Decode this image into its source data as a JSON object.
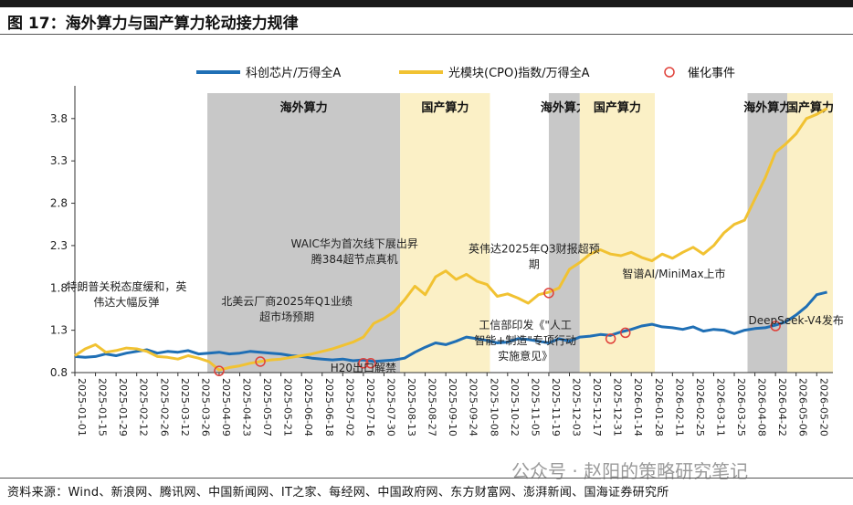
{
  "title": "图 17：海外算力与国产算力轮动接力规律",
  "source": "资料来源：Wind、新浪网、腾讯网、中国新闻网、IT之家、每经网、中国政府网、东方财富网、澎湃新闻、国海证券研究所",
  "watermark": "公众号 · 赵阳的策略研究笔记",
  "colors": {
    "blue": "#1f6fb5",
    "gold": "#f1c232",
    "gray_band": "#c8c8c8",
    "yellow_band": "#fbf0c6",
    "event": "#e0413a"
  },
  "chart_data": {
    "type": "line",
    "ylim": [
      0.8,
      4.1
    ],
    "yticks": [
      "0.8",
      "1.3",
      "1.8",
      "2.3",
      "2.8",
      "3.3",
      "3.8"
    ],
    "x_range": [
      "2025-01-01",
      "2026-05-31"
    ],
    "xticks": [
      "2025-01-01",
      "2025-01-15",
      "2025-01-29",
      "2025-02-12",
      "2025-02-26",
      "2025-03-12",
      "2025-03-26",
      "2025-04-09",
      "2025-04-23",
      "2025-05-07",
      "2025-05-21",
      "2025-06-04",
      "2025-06-18",
      "2025-07-02",
      "2025-07-16",
      "2025-07-30",
      "2025-08-13",
      "2025-08-27",
      "2025-09-10",
      "2025-09-24",
      "2025-10-08",
      "2025-10-22",
      "2025-11-05",
      "2025-11-19",
      "2025-12-03",
      "2025-12-17",
      "2025-12-31",
      "2026-01-14",
      "2026-01-28",
      "2026-02-11",
      "2026-02-25",
      "2026-03-11",
      "2026-03-25",
      "2026-04-08",
      "2026-04-22",
      "2026-05-06",
      "2026-05-20"
    ],
    "legend": [
      {
        "label": "科创芯片/万得全A",
        "kind": "line",
        "color": "#1f6fb5"
      },
      {
        "label": "光模块(CPO)指数/万得全A",
        "kind": "line",
        "color": "#f1c232"
      },
      {
        "label": "催化事件",
        "kind": "circle",
        "color": "#e0413a"
      }
    ],
    "bands": [
      {
        "label": "海外算力",
        "start": "2025-04-01",
        "end": "2025-08-10",
        "color": "gray"
      },
      {
        "label": "国产算力",
        "start": "2025-08-10",
        "end": "2025-10-10",
        "color": "yellow"
      },
      {
        "label": "海外算力",
        "start": "2025-11-19",
        "end": "2025-12-10",
        "color": "gray"
      },
      {
        "label": "国产算力",
        "start": "2025-12-10",
        "end": "2026-01-30",
        "color": "yellow"
      },
      {
        "label": "海外算力",
        "start": "2026-04-03",
        "end": "2026-04-30",
        "color": "gray"
      },
      {
        "label": "国产算力",
        "start": "2026-04-30",
        "end": "2026-05-31",
        "color": "yellow"
      }
    ],
    "series": [
      {
        "name": "科创芯片/万得全A",
        "x": [
          "2025-01-01",
          "2025-01-08",
          "2025-01-15",
          "2025-01-22",
          "2025-01-29",
          "2025-02-05",
          "2025-02-12",
          "2025-02-19",
          "2025-02-26",
          "2025-03-05",
          "2025-03-12",
          "2025-03-19",
          "2025-03-26",
          "2025-04-02",
          "2025-04-09",
          "2025-04-16",
          "2025-04-23",
          "2025-04-30",
          "2025-05-07",
          "2025-05-14",
          "2025-05-21",
          "2025-05-28",
          "2025-06-04",
          "2025-06-11",
          "2025-06-18",
          "2025-06-25",
          "2025-07-02",
          "2025-07-09",
          "2025-07-16",
          "2025-07-23",
          "2025-07-30",
          "2025-08-06",
          "2025-08-13",
          "2025-08-20",
          "2025-08-27",
          "2025-09-03",
          "2025-09-10",
          "2025-09-17",
          "2025-09-24",
          "2025-10-01",
          "2025-10-08",
          "2025-10-15",
          "2025-10-22",
          "2025-10-29",
          "2025-11-05",
          "2025-11-12",
          "2025-11-19",
          "2025-11-26",
          "2025-12-03",
          "2025-12-10",
          "2025-12-17",
          "2025-12-24",
          "2025-12-31",
          "2026-01-07",
          "2026-01-14",
          "2026-01-21",
          "2026-01-28",
          "2026-02-04",
          "2026-02-11",
          "2026-02-18",
          "2026-02-25",
          "2026-03-04",
          "2026-03-11",
          "2026-03-18",
          "2026-03-25",
          "2026-04-01",
          "2026-04-08",
          "2026-04-15",
          "2026-04-22",
          "2026-04-29",
          "2026-05-06",
          "2026-05-13",
          "2026-05-20",
          "2026-05-27"
        ],
        "values": [
          0.99,
          0.98,
          0.99,
          1.02,
          1.0,
          1.03,
          1.05,
          1.07,
          1.03,
          1.05,
          1.04,
          1.06,
          1.02,
          1.03,
          1.04,
          1.02,
          1.03,
          1.05,
          1.04,
          1.03,
          1.02,
          1.0,
          0.99,
          0.97,
          0.96,
          0.95,
          0.96,
          0.94,
          0.95,
          0.93,
          0.94,
          0.95,
          0.97,
          1.04,
          1.1,
          1.15,
          1.13,
          1.17,
          1.22,
          1.2,
          1.18,
          1.15,
          1.16,
          1.2,
          1.19,
          1.17,
          1.15,
          1.2,
          1.17,
          1.22,
          1.23,
          1.25,
          1.24,
          1.28,
          1.31,
          1.35,
          1.37,
          1.34,
          1.33,
          1.31,
          1.34,
          1.29,
          1.31,
          1.3,
          1.26,
          1.3,
          1.32,
          1.33,
          1.36,
          1.4,
          1.48,
          1.58,
          1.72,
          1.75
        ]
      },
      {
        "name": "光模块(CPO)指数/万得全A",
        "x": [
          "2025-01-01",
          "2025-01-08",
          "2025-01-15",
          "2025-01-22",
          "2025-01-29",
          "2025-02-05",
          "2025-02-12",
          "2025-02-19",
          "2025-02-26",
          "2025-03-05",
          "2025-03-12",
          "2025-03-19",
          "2025-03-26",
          "2025-04-02",
          "2025-04-09",
          "2025-04-16",
          "2025-04-23",
          "2025-04-30",
          "2025-05-07",
          "2025-05-14",
          "2025-05-21",
          "2025-05-28",
          "2025-06-04",
          "2025-06-11",
          "2025-06-18",
          "2025-06-25",
          "2025-07-02",
          "2025-07-09",
          "2025-07-16",
          "2025-07-23",
          "2025-07-30",
          "2025-08-06",
          "2025-08-13",
          "2025-08-20",
          "2025-08-27",
          "2025-09-03",
          "2025-09-10",
          "2025-09-17",
          "2025-09-24",
          "2025-10-01",
          "2025-10-08",
          "2025-10-15",
          "2025-10-22",
          "2025-10-29",
          "2025-11-05",
          "2025-11-12",
          "2025-11-19",
          "2025-11-26",
          "2025-12-03",
          "2025-12-10",
          "2025-12-17",
          "2025-12-24",
          "2025-12-31",
          "2026-01-07",
          "2026-01-14",
          "2026-01-21",
          "2026-01-28",
          "2026-02-04",
          "2026-02-11",
          "2026-02-18",
          "2026-02-25",
          "2026-03-04",
          "2026-03-11",
          "2026-03-18",
          "2026-03-25",
          "2026-04-01",
          "2026-04-08",
          "2026-04-15",
          "2026-04-22",
          "2026-04-29",
          "2026-05-06",
          "2026-05-13",
          "2026-05-20",
          "2026-05-27"
        ],
        "values": [
          1.0,
          1.08,
          1.13,
          1.04,
          1.06,
          1.09,
          1.08,
          1.05,
          0.99,
          0.98,
          0.96,
          1.0,
          0.97,
          0.93,
          0.83,
          0.86,
          0.88,
          0.91,
          0.93,
          0.95,
          0.96,
          0.98,
          1.0,
          1.02,
          1.05,
          1.08,
          1.12,
          1.16,
          1.22,
          1.38,
          1.44,
          1.52,
          1.66,
          1.82,
          1.72,
          1.93,
          2.0,
          1.9,
          1.96,
          1.88,
          1.84,
          1.7,
          1.73,
          1.68,
          1.62,
          1.72,
          1.75,
          1.8,
          2.02,
          2.1,
          2.2,
          2.25,
          2.2,
          2.18,
          2.22,
          2.16,
          2.12,
          2.2,
          2.15,
          2.22,
          2.28,
          2.2,
          2.3,
          2.45,
          2.55,
          2.6,
          2.85,
          3.1,
          3.4,
          3.5,
          3.62,
          3.8,
          3.85,
          3.92
        ]
      }
    ],
    "events": [
      {
        "date": "2025-04-09",
        "value": 0.82
      },
      {
        "date": "2025-05-07",
        "value": 0.93
      },
      {
        "date": "2025-07-16",
        "value": 0.91
      },
      {
        "date": "2025-07-21",
        "value": 0.91
      },
      {
        "date": "2025-11-19",
        "value": 1.74
      },
      {
        "date": "2025-12-31",
        "value": 1.2
      },
      {
        "date": "2026-01-10",
        "value": 1.27
      },
      {
        "date": "2026-04-22",
        "value": 1.35
      }
    ],
    "annotations": [
      {
        "lines": [
          "特朗普关税态度缓和，英",
          "伟达大幅反弹"
        ],
        "anchor_date": "2025-02-05",
        "anchor_value": 1.77
      },
      {
        "lines": [
          "北美云厂商2025年Q1业绩",
          "超市场预期"
        ],
        "anchor_date": "2025-05-25",
        "anchor_value": 1.6
      },
      {
        "lines": [
          "WAIC华为首次线下展出昇",
          "腾384超节点真机"
        ],
        "anchor_date": "2025-07-10",
        "anchor_value": 2.28
      },
      {
        "lines": [
          "H20出口解禁"
        ],
        "anchor_date": "2025-07-16",
        "anchor_value": 0.81
      },
      {
        "lines": [
          "英伟达2025年Q3财报超预",
          "期"
        ],
        "anchor_date": "2025-11-09",
        "anchor_value": 2.22
      },
      {
        "lines": [
          "智谱AI/MiniMax上市"
        ],
        "anchor_date": "2026-02-12",
        "anchor_value": 1.92
      },
      {
        "lines": [
          "工信部印发《\"人工",
          "智能+制造\"专项行动",
          "实施意见》"
        ],
        "anchor_date": "2025-11-03",
        "anchor_value": 1.32
      },
      {
        "lines": [
          "DeepSeek-V4发布"
        ],
        "anchor_date": "2026-05-06",
        "anchor_value": 1.37
      }
    ]
  }
}
